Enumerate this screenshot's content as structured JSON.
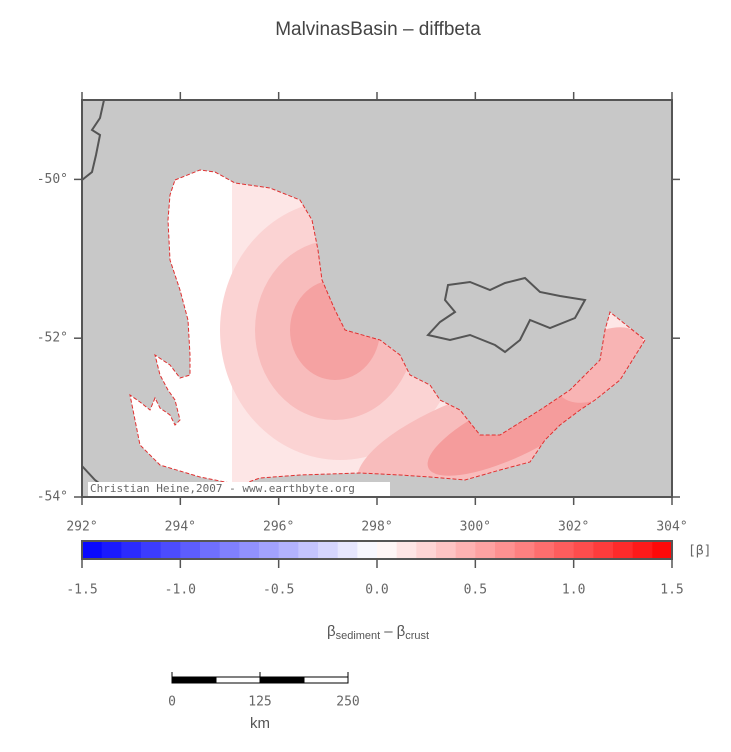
{
  "title": "MalvinasBasin – diffbeta",
  "map": {
    "xlim": [
      292,
      304
    ],
    "ylim": [
      -54,
      -49
    ],
    "xticks": [
      {
        "value": 292,
        "label": "292°"
      },
      {
        "value": 294,
        "label": "294°"
      },
      {
        "value": 296,
        "label": "296°"
      },
      {
        "value": 298,
        "label": "298°"
      },
      {
        "value": 300,
        "label": "300°"
      },
      {
        "value": 302,
        "label": "302°"
      },
      {
        "value": 304,
        "label": "304°"
      }
    ],
    "yticks": [
      {
        "value": -50,
        "label": "-50°"
      },
      {
        "value": -52,
        "label": "-52°"
      },
      {
        "value": -54,
        "label": "-54°"
      }
    ],
    "credit": "Christian Heine,2007 - www.earthbyte.org"
  },
  "colorbar": {
    "lim": [
      -1.5,
      1.5
    ],
    "ticks": [
      -1.5,
      {
        "value": -1,
        "label": "-1.0"
      },
      -0.5,
      {
        "value": 0,
        "label": "0.0"
      },
      0.5,
      {
        "value": 1,
        "label": "1.0"
      },
      1.5
    ],
    "colors": {
      "negative": "#0000ff",
      "zero": "#ffffff",
      "positive": "#ff0000"
    },
    "unit": "[β]",
    "label": {
      "symbol": "β",
      "sub1": "sediment",
      "minus": "–",
      "sub2": "crust"
    }
  },
  "scalebar": {
    "lim": [
      0,
      250
    ],
    "ticks": [
      0,
      125,
      250
    ],
    "unit": "km"
  }
}
